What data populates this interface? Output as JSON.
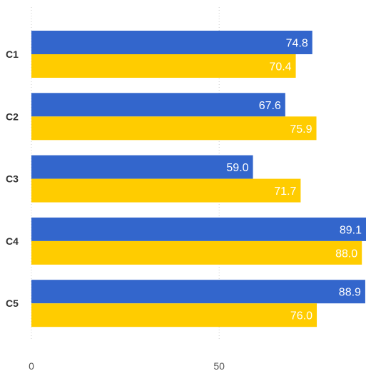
{
  "chart_data": {
    "type": "bar",
    "orientation": "horizontal",
    "categories": [
      "C1",
      "C2",
      "C3",
      "C4",
      "C5"
    ],
    "series": [
      {
        "color": "#3366cc",
        "values": [
          74.8,
          67.6,
          59.0,
          89.1,
          88.9
        ],
        "labels": [
          "74.8",
          "67.6",
          "59.0",
          "89.1",
          "88.9"
        ]
      },
      {
        "color": "#ffcc00",
        "values": [
          70.4,
          75.9,
          71.7,
          88.0,
          76.0
        ],
        "labels": [
          "70.4",
          "75.9",
          "71.7",
          "88.0",
          "76.0"
        ]
      }
    ],
    "x_ticks": [
      {
        "value": 0,
        "label": "0"
      },
      {
        "value": 50,
        "label": "50"
      }
    ],
    "xlim": [
      0,
      89.1
    ],
    "grid": true,
    "legend": "none"
  }
}
